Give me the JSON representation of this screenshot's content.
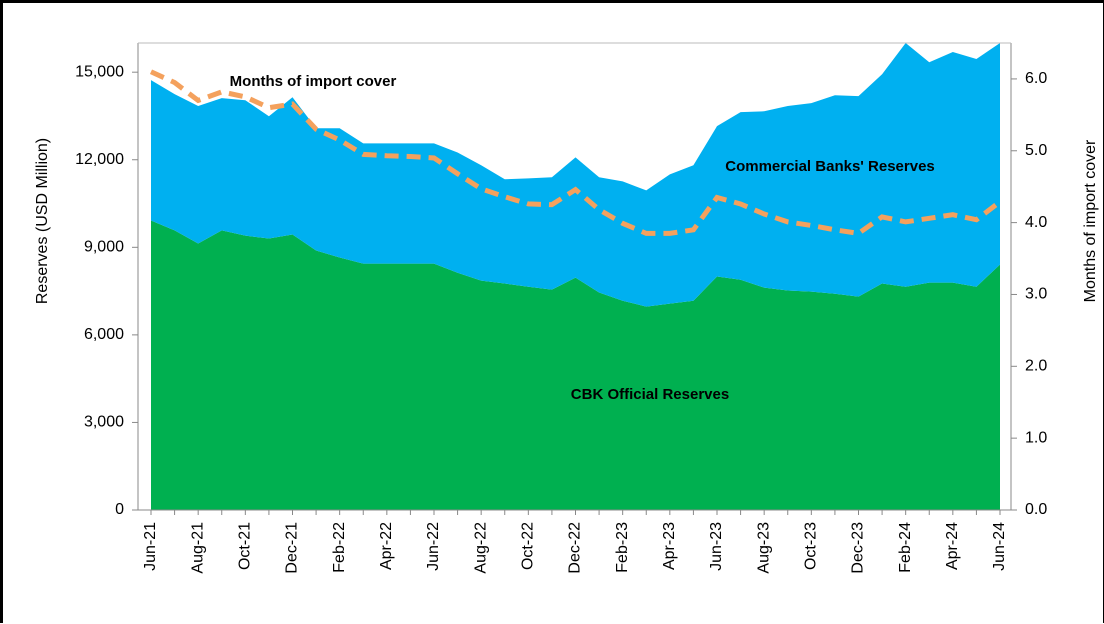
{
  "chart_data": {
    "type": "stacked_area_line",
    "y_label": "Reserves (USD Million)",
    "y2_label": "Months of import cover",
    "categories": [
      "Jun-21",
      null,
      "Aug-21",
      null,
      "Oct-21",
      null,
      "Dec-21",
      null,
      "Feb-22",
      null,
      "Apr-22",
      null,
      "Jun-22",
      null,
      "Aug-22",
      null,
      "Oct-22",
      null,
      "Dec-22",
      null,
      "Feb-23",
      null,
      "Apr-23",
      null,
      "Jun-23",
      null,
      "Aug-23",
      null,
      "Oct-23",
      null,
      "Dec-23",
      null,
      "Feb-24",
      null,
      "Apr-24",
      null,
      "Jun-24"
    ],
    "series": [
      {
        "name": "CBK Official Reserves",
        "color": "#00b050",
        "type": "area",
        "values": [
          9920,
          9580,
          9130,
          9580,
          9400,
          9300,
          9440,
          8890,
          8650,
          8440,
          8440,
          8440,
          8440,
          8130,
          7860,
          7760,
          7650,
          7550,
          7960,
          7450,
          7170,
          6970,
          7070,
          7170,
          8000,
          7890,
          7620,
          7520,
          7480,
          7410,
          7310,
          7760,
          7650,
          7790,
          7790,
          7650,
          8410
        ]
      },
      {
        "name": "Commercial Banks' Reserves",
        "color": "#00b0f0",
        "type": "area",
        "values": [
          4810,
          4670,
          4710,
          4530,
          4640,
          4190,
          4700,
          4190,
          4430,
          4120,
          4120,
          4120,
          4120,
          4120,
          3950,
          3570,
          3710,
          3850,
          4120,
          3950,
          4090,
          3980,
          4430,
          4640,
          5150,
          5740,
          6040,
          6320,
          6460,
          6800,
          6870,
          7170,
          8350,
          7550,
          7900,
          7800,
          7590
        ]
      },
      {
        "name": "Months of import cover",
        "color": "#f4a15d",
        "type": "line",
        "axis": "y2",
        "values": [
          6.1,
          5.95,
          5.7,
          5.82,
          5.75,
          5.6,
          5.65,
          5.3,
          5.15,
          4.95,
          4.93,
          4.92,
          4.9,
          4.68,
          4.47,
          4.36,
          4.26,
          4.25,
          4.46,
          4.18,
          3.99,
          3.85,
          3.85,
          3.9,
          4.35,
          4.26,
          4.12,
          4.01,
          3.96,
          3.9,
          3.85,
          4.08,
          4.01,
          4.06,
          4.11,
          4.04,
          4.29
        ]
      }
    ],
    "ylim": [
      0,
      16000
    ],
    "yticks": [
      0,
      {
        "value": 3000,
        "label": "3,000"
      },
      {
        "value": 6000,
        "label": "6,000"
      },
      {
        "value": 9000,
        "label": "9,000"
      },
      {
        "value": 12000,
        "label": "12,000"
      },
      {
        "value": 15000,
        "label": "15,000"
      }
    ],
    "y2lim": [
      0,
      6.5
    ],
    "y2ticks": [
      {
        "value": 0,
        "label": "0.0"
      },
      {
        "value": 1,
        "label": "1.0"
      },
      {
        "value": 2,
        "label": "2.0"
      },
      {
        "value": 3,
        "label": "3.0"
      },
      {
        "value": 4,
        "label": "4.0"
      },
      {
        "value": 5,
        "label": "5.0"
      },
      {
        "value": 6,
        "label": "6.0"
      }
    ],
    "grid": false
  }
}
